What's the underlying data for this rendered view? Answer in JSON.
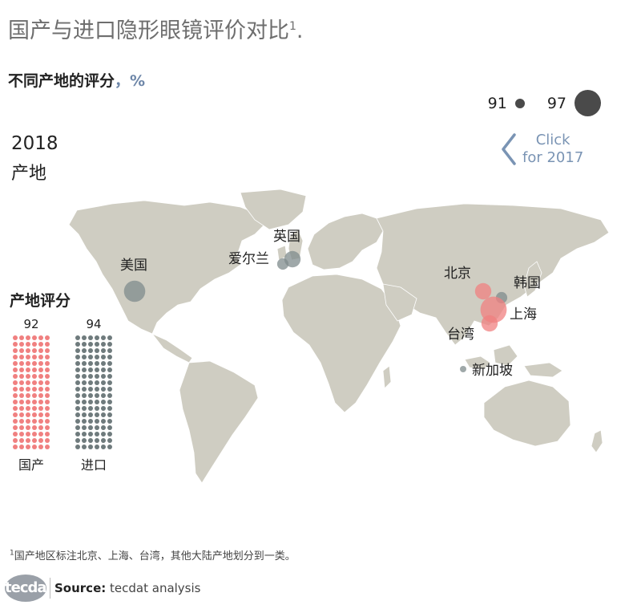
{
  "header": {
    "title": "国产与进口隐形眼镜评价对比",
    "title_note_mark": "1",
    "title_end": ".",
    "subtitle": "不同产地的评分",
    "subtitle_unit": "，%"
  },
  "size_legend": {
    "small_value": "91",
    "large_value": "97"
  },
  "view": {
    "year": "2018",
    "category": "产地"
  },
  "nav": {
    "line1": "Click",
    "line2": "for 2017"
  },
  "colors": {
    "domestic": "#f08080",
    "import": "#6f7b7d",
    "land": "#cfcdc2",
    "bubble_gray": "#7f8b8c",
    "bubble_red": "#f08080"
  },
  "map_points": [
    {
      "name": "美国",
      "score": 94,
      "type": "import"
    },
    {
      "name": "英国",
      "score": 93,
      "type": "import"
    },
    {
      "name": "爱尔兰",
      "score": 92,
      "type": "import"
    },
    {
      "name": "北京",
      "score": 93,
      "type": "domestic"
    },
    {
      "name": "韩国",
      "score": 92,
      "type": "import"
    },
    {
      "name": "上海",
      "score": 95,
      "type": "domestic"
    },
    {
      "name": "台湾",
      "score": 93,
      "type": "domestic"
    },
    {
      "name": "新加坡",
      "score": 91,
      "type": "import"
    }
  ],
  "score_panel": {
    "title": "产地评分",
    "domestic": {
      "value": "92",
      "label": "国产"
    },
    "import": {
      "value": "94",
      "label": "进口"
    }
  },
  "footnote": {
    "mark": "1",
    "text": "国产地区标注北京、上海、台湾，其他大陆产地划分到一类。"
  },
  "brand": "tecdat",
  "source": {
    "label": "Source:",
    "text": "tecdat analysis"
  }
}
